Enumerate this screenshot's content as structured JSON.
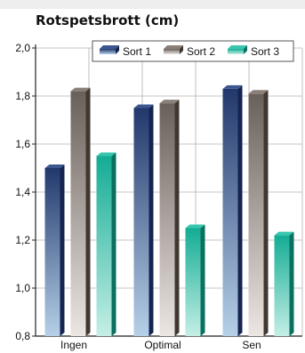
{
  "chart_data": {
    "type": "bar",
    "title": "Rotspetsbrott (cm)",
    "xlabel": "",
    "ylabel": "",
    "categories": [
      "Ingen",
      "Optimal",
      "Sen"
    ],
    "series": [
      {
        "name": "Sort 1",
        "values": [
          1.5,
          1.75,
          1.83
        ]
      },
      {
        "name": "Sort 2",
        "values": [
          1.82,
          1.77,
          1.81
        ]
      },
      {
        "name": "Sort 3",
        "values": [
          1.55,
          1.25,
          1.22
        ]
      }
    ],
    "ylim": [
      0.8,
      2.0
    ],
    "yticks": [
      "0,8",
      "1,0",
      "1,2",
      "1,4",
      "1,6",
      "1,8",
      "2,0"
    ],
    "grid": true,
    "legend": "top-right",
    "colors": {
      "series": [
        {
          "light": "#b6d0e8",
          "dark": "#22386c",
          "side": "#152450",
          "top": "#3c5690"
        },
        {
          "light": "#ece6e3",
          "dark": "#6a605a",
          "side": "#403830",
          "top": "#8a8079"
        },
        {
          "light": "#c4efe6",
          "dark": "#14ac94",
          "side": "#0a7060",
          "top": "#38c6ae"
        }
      ],
      "grid": "#b0b0b0",
      "header": "#eeeeee"
    }
  }
}
